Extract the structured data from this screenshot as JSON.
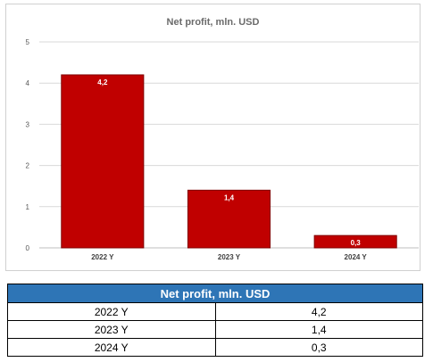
{
  "chart_data": {
    "type": "bar",
    "title": "Net profit, mln. USD",
    "categories": [
      "2022 Y",
      "2023 Y",
      "2024 Y"
    ],
    "values": [
      4.2,
      1.4,
      0.3
    ],
    "data_labels": [
      "4,2",
      "1,4",
      "0,3"
    ],
    "y_ticks": [
      "0",
      "1",
      "2",
      "3",
      "4",
      "5"
    ],
    "ylim": [
      0,
      5
    ],
    "xlabel": "",
    "ylabel": "",
    "grid": true,
    "legend": "none",
    "bar_color": "#c00000",
    "bar_border_color": "#7f0000",
    "label_color": "#ffffff"
  },
  "table": {
    "header": "Net profit, mln. USD",
    "header_color": "#2e75b6",
    "rows": [
      {
        "label": "2022 Y",
        "value": "4,2"
      },
      {
        "label": "2023 Y",
        "value": "1,4"
      },
      {
        "label": "2024 Y",
        "value": "0,3"
      }
    ]
  }
}
